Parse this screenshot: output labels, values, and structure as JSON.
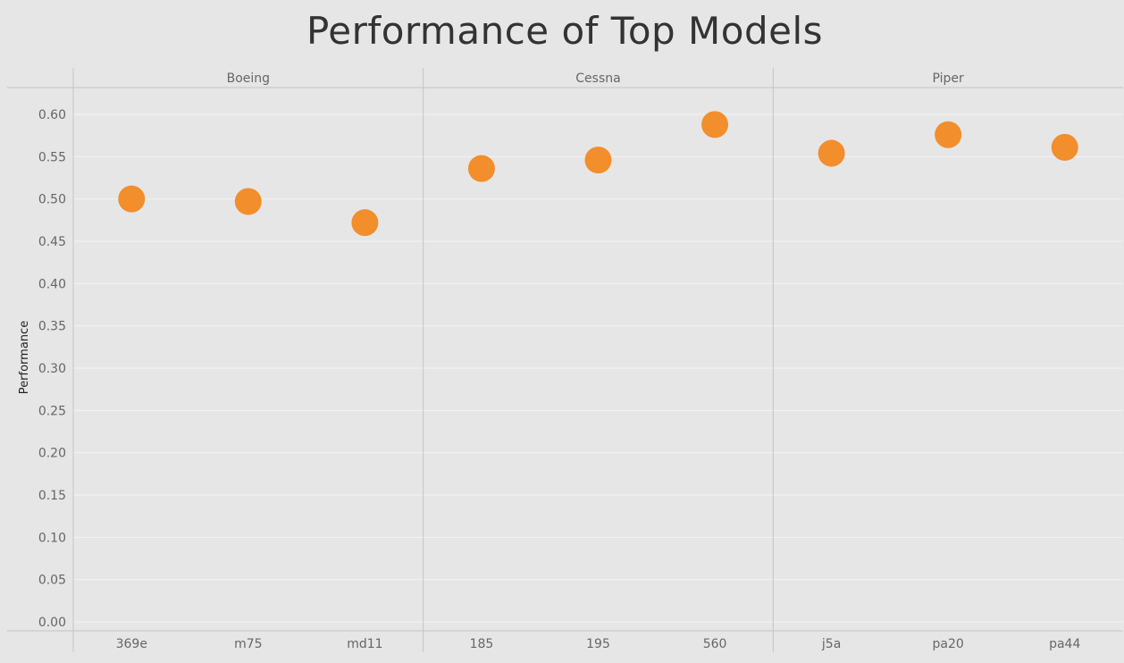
{
  "chart_data": {
    "type": "scatter",
    "title": "Performance of Top Models",
    "ylabel": "Performance",
    "ylim": [
      0,
      0.63
    ],
    "yticks": [
      0.0,
      0.05,
      0.1,
      0.15,
      0.2,
      0.25,
      0.3,
      0.35,
      0.4,
      0.45,
      0.5,
      0.55,
      0.6
    ],
    "grid": true,
    "color": "#f28e2b",
    "background": "#e6e6e6",
    "facets": [
      {
        "name": "Boeing",
        "categories": [
          "369e",
          "m75",
          "md11"
        ],
        "values": [
          0.5,
          0.497,
          0.472
        ]
      },
      {
        "name": "Cessna",
        "categories": [
          "185",
          "195",
          "560"
        ],
        "values": [
          0.536,
          0.546,
          0.588
        ]
      },
      {
        "name": "Piper",
        "categories": [
          "j5a",
          "pa20",
          "pa44"
        ],
        "values": [
          0.554,
          0.576,
          0.561
        ]
      }
    ]
  }
}
